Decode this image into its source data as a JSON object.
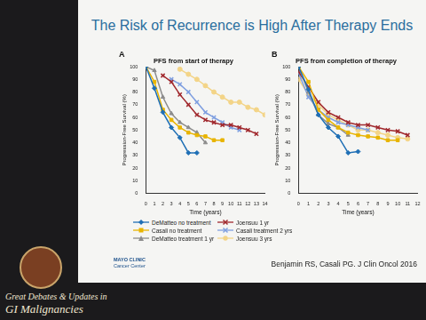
{
  "slide": {
    "title": "The Risk of Recurrence is High After Therapy Ends",
    "citation": "Benjamin RS, Casali PG. J Clin Oncol 2016",
    "institution": [
      "MAYO CLINIC",
      "Cancer Center"
    ],
    "branding": [
      "Great Debates & Updates in",
      "GI Malignancies"
    ]
  },
  "chart_data": [
    {
      "type": "line",
      "panel": "A",
      "title": "PFS from start of therapy",
      "x_label": "Time (years)",
      "y_label": "Progression-Free Survival (%)",
      "xlim": [
        0,
        14
      ],
      "xticks": [
        0,
        1,
        2,
        3,
        4,
        5,
        6,
        7,
        8,
        9,
        10,
        11,
        12,
        13,
        14
      ],
      "ylim": [
        0,
        100
      ],
      "yticks": [
        0,
        10,
        20,
        30,
        40,
        50,
        60,
        70,
        80,
        90,
        100
      ],
      "grid": false,
      "series": [
        {
          "name": "DeMatteo no treatment",
          "color": "#1f6fb5",
          "marker": "diamond",
          "x": [
            0,
            1,
            2,
            3,
            4,
            5,
            6
          ],
          "values": [
            100,
            83,
            64,
            52,
            44,
            32,
            32
          ]
        },
        {
          "name": "Casali no treatment",
          "color": "#e8b400",
          "marker": "square",
          "x": [
            0,
            1,
            2,
            3,
            4,
            5,
            6,
            7,
            8,
            9
          ],
          "values": [
            100,
            88,
            66,
            58,
            52,
            48,
            46,
            45,
            42,
            42
          ]
        },
        {
          "name": "DeMatteo treatment 1 yr",
          "color": "#8c8c8c",
          "marker": "triangle",
          "x": [
            0,
            1,
            2,
            3,
            4,
            5,
            6,
            7
          ],
          "values": [
            100,
            97,
            76,
            63,
            56,
            52,
            48,
            40
          ]
        },
        {
          "name": "Joensuu 1 yr",
          "color": "#a0282d",
          "marker": "x",
          "x": [
            2,
            3,
            4,
            5,
            6,
            7,
            8,
            9,
            10,
            11,
            12,
            13
          ],
          "values": [
            93,
            88,
            78,
            70,
            62,
            58,
            56,
            54,
            54,
            52,
            50,
            47
          ]
        },
        {
          "name": "Casali treatment 2 yrs",
          "color": "#7f9fe0",
          "marker": "x",
          "x": [
            3,
            4,
            5,
            6,
            7,
            8,
            9,
            10,
            11
          ],
          "values": [
            90,
            86,
            80,
            72,
            64,
            60,
            56,
            52,
            50
          ]
        },
        {
          "name": "Joensuu 3 yrs",
          "color": "#f3d487",
          "marker": "circle",
          "x": [
            4,
            5,
            6,
            7,
            8,
            9,
            10,
            11,
            12,
            13,
            14
          ],
          "values": [
            98,
            94,
            90,
            85,
            80,
            76,
            72,
            72,
            68,
            66,
            62
          ]
        }
      ]
    },
    {
      "type": "line",
      "panel": "B",
      "title": "PFS from completion of therapy",
      "x_label": "Time (years)",
      "y_label": "Progression-Free Survival (%)",
      "xlim": [
        0,
        12
      ],
      "xticks": [
        0,
        1,
        2,
        3,
        4,
        5,
        6,
        7,
        8,
        9,
        10,
        11,
        12
      ],
      "ylim": [
        0,
        100
      ],
      "yticks": [
        0,
        10,
        20,
        30,
        40,
        50,
        60,
        70,
        80,
        90,
        100
      ],
      "grid": false,
      "series": [
        {
          "name": "DeMatteo no treatment",
          "color": "#1f6fb5",
          "marker": "diamond",
          "x": [
            0,
            1,
            2,
            3,
            4,
            5,
            6
          ],
          "values": [
            100,
            82,
            62,
            52,
            45,
            32,
            33
          ]
        },
        {
          "name": "Casali no treatment",
          "color": "#e8b400",
          "marker": "square",
          "x": [
            0,
            1,
            2,
            3,
            4,
            5,
            6,
            7,
            8,
            9,
            10
          ],
          "values": [
            100,
            88,
            66,
            58,
            52,
            48,
            46,
            45,
            44,
            42,
            42
          ]
        },
        {
          "name": "DeMatteo treatment 1 yr",
          "color": "#8c8c8c",
          "marker": "triangle",
          "x": [
            0,
            1,
            2,
            3,
            4,
            5
          ],
          "values": [
            100,
            80,
            62,
            55,
            52,
            46
          ]
        },
        {
          "name": "Joensuu 1 yr",
          "color": "#a0282d",
          "marker": "x",
          "x": [
            0,
            1,
            2,
            3,
            4,
            5,
            6,
            7,
            8,
            9,
            10,
            11
          ],
          "values": [
            96,
            84,
            72,
            64,
            60,
            56,
            54,
            54,
            52,
            50,
            49,
            46
          ]
        },
        {
          "name": "Casali treatment 2 yrs",
          "color": "#7f9fe0",
          "marker": "x",
          "x": [
            0,
            1,
            2,
            3,
            4,
            5,
            6,
            7
          ],
          "values": [
            95,
            76,
            66,
            60,
            56,
            54,
            52,
            50
          ]
        },
        {
          "name": "Joensuu 3 yrs",
          "color": "#f3d487",
          "marker": "circle",
          "x": [
            0,
            1,
            2,
            3,
            4,
            5,
            6,
            7,
            8,
            9,
            10,
            11
          ],
          "values": [
            90,
            78,
            70,
            62,
            58,
            54,
            50,
            50,
            48,
            46,
            44,
            43
          ]
        }
      ]
    }
  ]
}
